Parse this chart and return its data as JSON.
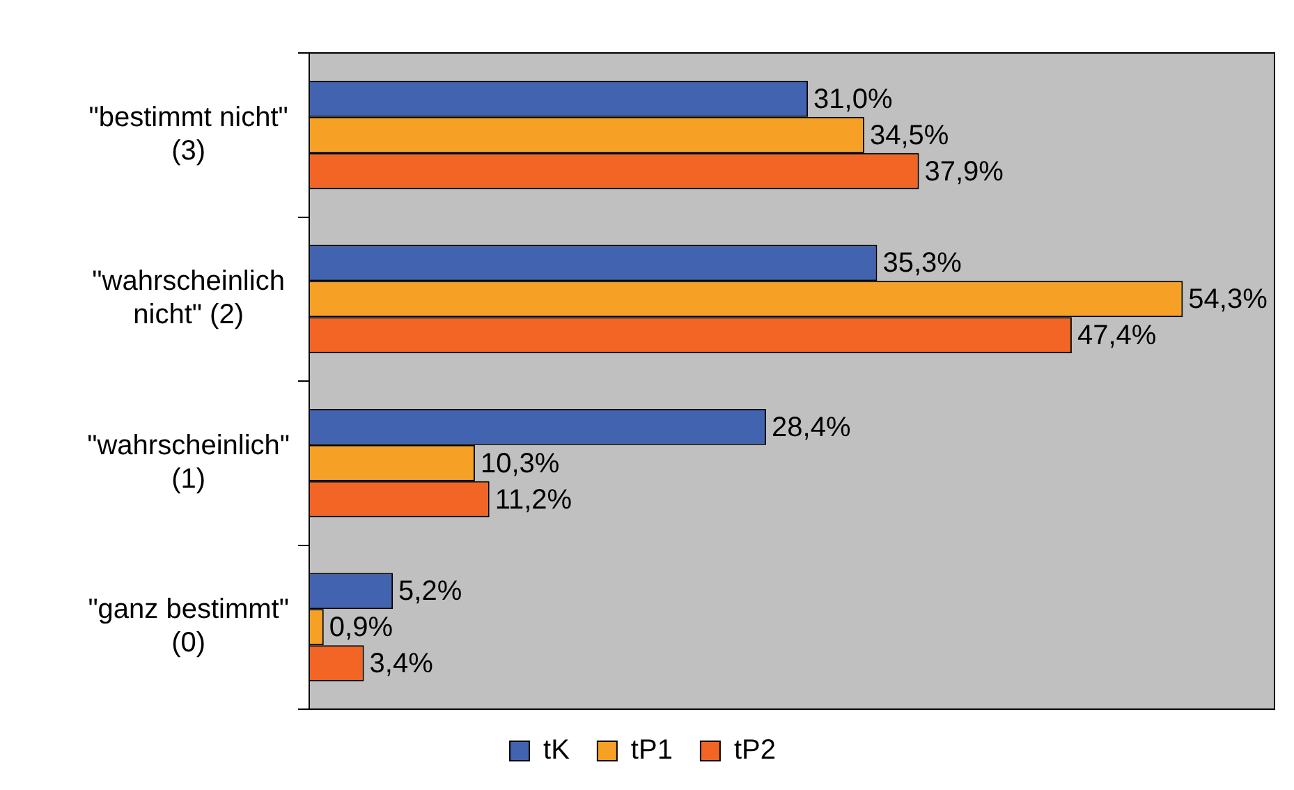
{
  "chart_data": {
    "type": "bar",
    "orientation": "horizontal",
    "categories": [
      "\"bestimmt nicht\"\n(3)",
      "\"wahrscheinlich\nnicht\" (2)",
      "\"wahrscheinlich\"\n(1)",
      "\"ganz bestimmt\"\n(0)"
    ],
    "series": [
      {
        "name": "tK",
        "color": "#4263b0",
        "values": [
          31.0,
          35.3,
          28.4,
          5.2
        ],
        "value_labels": [
          "31,0%",
          "35,3%",
          "28,4%",
          "5,2%"
        ]
      },
      {
        "name": "tP1",
        "color": "#f6a126",
        "values": [
          34.5,
          54.3,
          10.3,
          0.9
        ],
        "value_labels": [
          "34,5%",
          "54,3%",
          "10,3%",
          "0,9%"
        ]
      },
      {
        "name": "tP2",
        "color": "#f26524",
        "values": [
          37.9,
          47.4,
          11.2,
          3.4
        ],
        "value_labels": [
          "37,9%",
          "47,4%",
          "11,2%",
          "3,4%"
        ]
      }
    ],
    "legend": "bottom"
  }
}
